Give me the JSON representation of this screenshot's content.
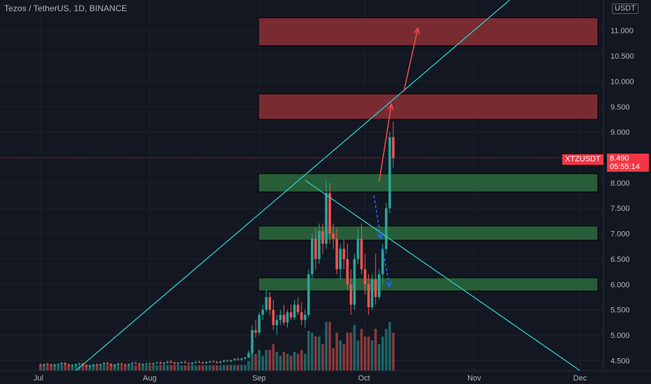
{
  "header": {
    "title": "Tezos / TetherUS, 1D, BINANCE",
    "currency": "USDT"
  },
  "price_badge": {
    "symbol": "XTZUSDT",
    "price": "8.490",
    "countdown": "05:55:14"
  },
  "colors": {
    "background": "#131722",
    "up": "#26a69a",
    "down": "#ef5350",
    "trendline": "#2ad1cf",
    "resistance_zone": "#8c2f35",
    "support_zone": "#2c6a3c",
    "arrow_up": "#f04a4a",
    "arrow_down": "#2962ff"
  },
  "chart_data": {
    "type": "candlestick",
    "y_axis": {
      "min": 4.3,
      "max": 11.6,
      "ticks": [
        "4.500",
        "5.000",
        "5.500",
        "6.000",
        "6.500",
        "7.000",
        "7.500",
        "8.000",
        "8.500",
        "9.000",
        "9.500",
        "10.000",
        "10.500",
        "11.000"
      ]
    },
    "x_axis": {
      "labels": [
        {
          "label": "Jul",
          "day": 0
        },
        {
          "label": "Aug",
          "day": 31
        },
        {
          "label": "Sep",
          "day": 62
        },
        {
          "label": "Oct",
          "day": 92
        },
        {
          "label": "Nov",
          "day": 123
        },
        {
          "label": "Dec",
          "day": 153
        }
      ]
    },
    "current_price": 8.49,
    "zones": [
      {
        "kind": "resistance",
        "low": 10.7,
        "high": 11.25,
        "day_start": 62,
        "day_end": 158
      },
      {
        "kind": "resistance",
        "low": 9.25,
        "high": 9.75,
        "day_start": 62,
        "day_end": 158
      },
      {
        "kind": "support",
        "low": 7.82,
        "high": 8.18,
        "day_start": 62,
        "day_end": 158
      },
      {
        "kind": "support",
        "low": 6.87,
        "high": 7.15,
        "day_start": 62,
        "day_end": 158
      },
      {
        "kind": "support",
        "low": 5.87,
        "high": 6.13,
        "day_start": 62,
        "day_end": 158
      }
    ],
    "trendlines": [
      {
        "from": {
          "day": 10,
          "price": 4.3
        },
        "to": {
          "day": 133,
          "price": 11.6
        }
      },
      {
        "from": {
          "day": 75,
          "price": 8.05
        },
        "to": {
          "day": 153,
          "price": 4.3
        }
      }
    ],
    "arrows": [
      {
        "color": "up",
        "style": "solid",
        "from": {
          "day": 103,
          "price": 9.8
        },
        "to": {
          "day": 107,
          "price": 11.05
        }
      },
      {
        "color": "up",
        "style": "solid",
        "from": {
          "day": 96,
          "price": 8.02
        },
        "to": {
          "day": 99.5,
          "price": 9.55
        }
      },
      {
        "color": "down",
        "style": "dashed",
        "from": {
          "day": 94.5,
          "price": 7.75
        },
        "to": {
          "day": 96.5,
          "price": 6.9
        }
      },
      {
        "color": "down",
        "style": "dashed",
        "from": {
          "day": 97,
          "price": 6.7
        },
        "to": {
          "day": 99,
          "price": 5.95
        }
      }
    ],
    "candles_note": "daily OHLC, day index 0 = Jul 1",
    "candles": [
      [
        0,
        4.42,
        4.45,
        4.39,
        4.41
      ],
      [
        1,
        4.41,
        4.44,
        4.38,
        4.43
      ],
      [
        2,
        4.43,
        4.46,
        4.4,
        4.42
      ],
      [
        3,
        4.42,
        4.45,
        4.39,
        4.4
      ],
      [
        4,
        4.4,
        4.44,
        4.37,
        4.42
      ],
      [
        5,
        4.42,
        4.45,
        4.4,
        4.43
      ],
      [
        6,
        4.43,
        4.47,
        4.41,
        4.45
      ],
      [
        7,
        4.45,
        4.47,
        4.41,
        4.42
      ],
      [
        8,
        4.42,
        4.44,
        4.38,
        4.4
      ],
      [
        9,
        4.4,
        4.43,
        4.37,
        4.41
      ],
      [
        10,
        4.41,
        4.44,
        4.39,
        4.43
      ],
      [
        11,
        4.43,
        4.46,
        4.41,
        4.44
      ],
      [
        12,
        4.44,
        4.46,
        4.4,
        4.41
      ],
      [
        13,
        4.41,
        4.43,
        4.37,
        4.39
      ],
      [
        14,
        4.39,
        4.42,
        4.36,
        4.4
      ],
      [
        15,
        4.4,
        4.44,
        4.38,
        4.42
      ],
      [
        16,
        4.42,
        4.45,
        4.4,
        4.41
      ],
      [
        17,
        4.41,
        4.44,
        4.39,
        4.43
      ],
      [
        18,
        4.43,
        4.47,
        4.41,
        4.45
      ],
      [
        19,
        4.45,
        4.48,
        4.42,
        4.43
      ],
      [
        20,
        4.43,
        4.45,
        4.39,
        4.4
      ],
      [
        21,
        4.4,
        4.43,
        4.37,
        4.42
      ],
      [
        22,
        4.42,
        4.46,
        4.4,
        4.44
      ],
      [
        23,
        4.44,
        4.46,
        4.41,
        4.42
      ],
      [
        24,
        4.42,
        4.44,
        4.38,
        4.41
      ],
      [
        25,
        4.41,
        4.44,
        4.39,
        4.43
      ],
      [
        26,
        4.43,
        4.47,
        4.41,
        4.45
      ],
      [
        27,
        4.45,
        4.48,
        4.43,
        4.44
      ],
      [
        28,
        4.44,
        4.46,
        4.4,
        4.42
      ],
      [
        29,
        4.42,
        4.45,
        4.39,
        4.43
      ],
      [
        30,
        4.43,
        4.46,
        4.41,
        4.44
      ],
      [
        31,
        4.44,
        4.47,
        4.42,
        4.43
      ],
      [
        32,
        4.43,
        4.46,
        4.4,
        4.45
      ],
      [
        33,
        4.45,
        4.48,
        4.43,
        4.46
      ],
      [
        34,
        4.46,
        4.49,
        4.43,
        4.44
      ],
      [
        35,
        4.44,
        4.47,
        4.41,
        4.46
      ],
      [
        36,
        4.46,
        4.5,
        4.44,
        4.48
      ],
      [
        37,
        4.48,
        4.51,
        4.45,
        4.46
      ],
      [
        38,
        4.46,
        4.48,
        4.42,
        4.44
      ],
      [
        39,
        4.44,
        4.47,
        4.41,
        4.46
      ],
      [
        40,
        4.46,
        4.49,
        4.44,
        4.47
      ],
      [
        41,
        4.47,
        4.5,
        4.45,
        4.45
      ],
      [
        42,
        4.45,
        4.47,
        4.42,
        4.44
      ],
      [
        43,
        4.44,
        4.47,
        4.41,
        4.46
      ],
      [
        44,
        4.46,
        4.49,
        4.44,
        4.47
      ],
      [
        45,
        4.47,
        4.5,
        4.45,
        4.46
      ],
      [
        46,
        4.46,
        4.48,
        4.43,
        4.45
      ],
      [
        47,
        4.45,
        4.48,
        4.43,
        4.47
      ],
      [
        48,
        4.47,
        4.5,
        4.45,
        4.48
      ],
      [
        49,
        4.48,
        4.51,
        4.46,
        4.47
      ],
      [
        50,
        4.47,
        4.49,
        4.44,
        4.46
      ],
      [
        51,
        4.46,
        4.49,
        4.44,
        4.48
      ],
      [
        52,
        4.48,
        4.52,
        4.46,
        4.5
      ],
      [
        53,
        4.5,
        4.53,
        4.47,
        4.49
      ],
      [
        54,
        4.49,
        4.52,
        4.46,
        4.51
      ],
      [
        55,
        4.51,
        4.55,
        4.49,
        4.53
      ],
      [
        56,
        4.53,
        4.56,
        4.5,
        4.52
      ],
      [
        57,
        4.52,
        4.55,
        4.49,
        4.54
      ],
      [
        58,
        4.54,
        4.58,
        4.52,
        4.56
      ],
      [
        59,
        4.56,
        4.7,
        4.54,
        4.65
      ],
      [
        60,
        4.65,
        5.2,
        4.62,
        5.1
      ],
      [
        61,
        5.1,
        5.3,
        4.95,
        5.05
      ],
      [
        62,
        5.05,
        5.45,
        5.0,
        5.4
      ],
      [
        63,
        5.4,
        5.6,
        5.3,
        5.5
      ],
      [
        64,
        5.5,
        5.9,
        5.45,
        5.75
      ],
      [
        65,
        5.75,
        5.85,
        5.4,
        5.5
      ],
      [
        66,
        5.5,
        5.7,
        5.1,
        5.2
      ],
      [
        67,
        5.2,
        5.4,
        5.0,
        5.3
      ],
      [
        68,
        5.3,
        5.5,
        5.2,
        5.4
      ],
      [
        69,
        5.4,
        5.6,
        5.2,
        5.25
      ],
      [
        70,
        5.25,
        5.5,
        5.15,
        5.45
      ],
      [
        71,
        5.45,
        5.6,
        5.3,
        5.35
      ],
      [
        72,
        5.35,
        5.7,
        5.3,
        5.6
      ],
      [
        73,
        5.6,
        5.75,
        5.4,
        5.45
      ],
      [
        74,
        5.45,
        5.65,
        5.2,
        5.3
      ],
      [
        75,
        5.3,
        5.5,
        5.15,
        5.4
      ],
      [
        76,
        5.4,
        6.3,
        5.35,
        6.2
      ],
      [
        77,
        6.2,
        7.0,
        6.1,
        6.9
      ],
      [
        78,
        6.9,
        7.1,
        6.3,
        6.5
      ],
      [
        79,
        6.5,
        7.2,
        6.4,
        7.05
      ],
      [
        80,
        7.05,
        7.2,
        6.6,
        6.8
      ],
      [
        81,
        6.8,
        8.05,
        6.7,
        7.8
      ],
      [
        82,
        7.8,
        8.0,
        6.8,
        7.0
      ],
      [
        83,
        7.0,
        7.2,
        6.7,
        6.9
      ],
      [
        84,
        6.9,
        7.1,
        6.2,
        6.3
      ],
      [
        85,
        6.3,
        6.8,
        6.1,
        6.7
      ],
      [
        86,
        6.7,
        6.9,
        6.3,
        6.5
      ],
      [
        87,
        6.5,
        6.8,
        5.9,
        6.0
      ],
      [
        88,
        6.0,
        6.3,
        5.4,
        5.6
      ],
      [
        89,
        5.6,
        6.6,
        5.5,
        6.5
      ],
      [
        90,
        6.5,
        7.1,
        6.4,
        6.9
      ],
      [
        91,
        6.9,
        7.2,
        6.2,
        6.3
      ],
      [
        92,
        6.3,
        6.6,
        5.8,
        6.0
      ],
      [
        93,
        6.0,
        6.2,
        5.4,
        5.55
      ],
      [
        94,
        5.55,
        6.2,
        5.5,
        6.1
      ],
      [
        95,
        6.1,
        6.6,
        5.6,
        5.75
      ],
      [
        96,
        5.75,
        6.3,
        5.7,
        6.2
      ],
      [
        97,
        6.2,
        6.8,
        6.0,
        6.7
      ],
      [
        98,
        6.7,
        7.6,
        6.6,
        7.5
      ],
      [
        99,
        7.5,
        9.0,
        7.4,
        8.9
      ],
      [
        100,
        8.9,
        9.2,
        8.3,
        8.49
      ]
    ]
  }
}
